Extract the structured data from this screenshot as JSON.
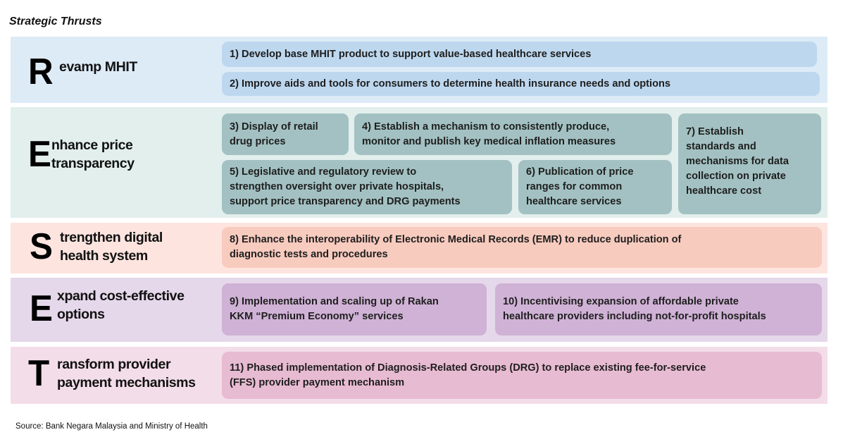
{
  "title": "Strategic Thrusts",
  "colors": {
    "revamp": {
      "bg": "#ddebf7",
      "item": "#bdd7ee"
    },
    "enhance": {
      "bg": "#e2efec",
      "item": "#a3c1c2"
    },
    "strengthen": {
      "bg": "#fde4df",
      "item": "#f8cbbf"
    },
    "expand": {
      "bg": "#e5d8ea",
      "item": "#d0b2d6"
    },
    "transform": {
      "bg": "#f3dde8",
      "item": "#e7bbd2"
    }
  },
  "thrusts": [
    {
      "letter": "R",
      "label": "evamp MHIT",
      "items": [
        "1) Develop base MHIT product to support value-based healthcare services",
        "2) Improve aids and tools for consumers to determine health insurance needs and options"
      ]
    },
    {
      "letter": "E",
      "label": "nhance price\ntransparency",
      "items": [
        "3) Display of retail\ndrug prices",
        "4) Establish a mechanism to consistently produce,\nmonitor and publish key medical inflation measures",
        "5) Legislative and regulatory review to\nstrengthen oversight over private hospitals,\nsupport price transparency and DRG payments",
        "6) Publication of price\nranges for common\nhealthcare services",
        "7) Establish\nstandards and\nmechanisms for data\ncollection on private\nhealthcare cost"
      ]
    },
    {
      "letter": "S",
      "label": "trengthen digital\nhealth system",
      "items": [
        "8) Enhance the interoperability of Electronic Medical Records (EMR) to reduce duplication of\ndiagnostic tests and procedures"
      ]
    },
    {
      "letter": "E",
      "label": "xpand cost-effective\noptions",
      "items": [
        "9) Implementation and scaling up of Rakan\nKKM  “Premium Economy” services",
        "10) Incentivising expansion of affordable private\nhealthcare providers including not-for-profit hospitals"
      ]
    },
    {
      "letter": "T",
      "label": "ransform provider\npayment mechanisms",
      "items": [
        "11) Phased implementation of Diagnosis-Related Groups (DRG) to replace existing fee-for-service\n(FFS) provider payment mechanism"
      ]
    }
  ],
  "source": "Source: Bank Negara Malaysia and Ministry of Health"
}
